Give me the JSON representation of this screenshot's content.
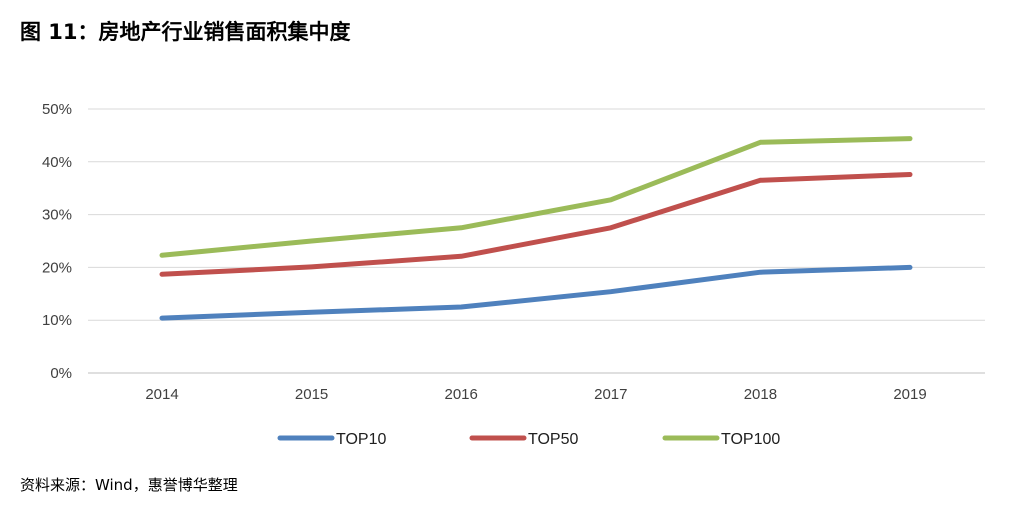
{
  "figure": {
    "title": "图 11：房地产行业销售面积集中度",
    "source": "资料来源：Wind，惠誉博华整理"
  },
  "chart_data": {
    "type": "line",
    "title": "房地产行业销售面积集中度",
    "xlabel": "",
    "ylabel": "",
    "categories": [
      "2014",
      "2015",
      "2016",
      "2017",
      "2018",
      "2019"
    ],
    "ylim": [
      0,
      50
    ],
    "yticks": [
      0,
      10,
      20,
      30,
      40,
      50
    ],
    "ytick_labels": [
      "0%",
      "10%",
      "20%",
      "30%",
      "40%",
      "50%"
    ],
    "grid": true,
    "legend_position": "bottom",
    "series": [
      {
        "name": "TOP10",
        "color": "#4F81BD",
        "values": [
          10.4,
          11.5,
          12.5,
          15.4,
          19.1,
          20.0
        ]
      },
      {
        "name": "TOP50",
        "color": "#C0504D",
        "values": [
          18.7,
          20.1,
          22.1,
          27.5,
          36.5,
          37.6
        ]
      },
      {
        "name": "TOP100",
        "color": "#9BBB59",
        "values": [
          22.3,
          25.0,
          27.5,
          32.8,
          43.7,
          44.4
        ]
      }
    ]
  }
}
